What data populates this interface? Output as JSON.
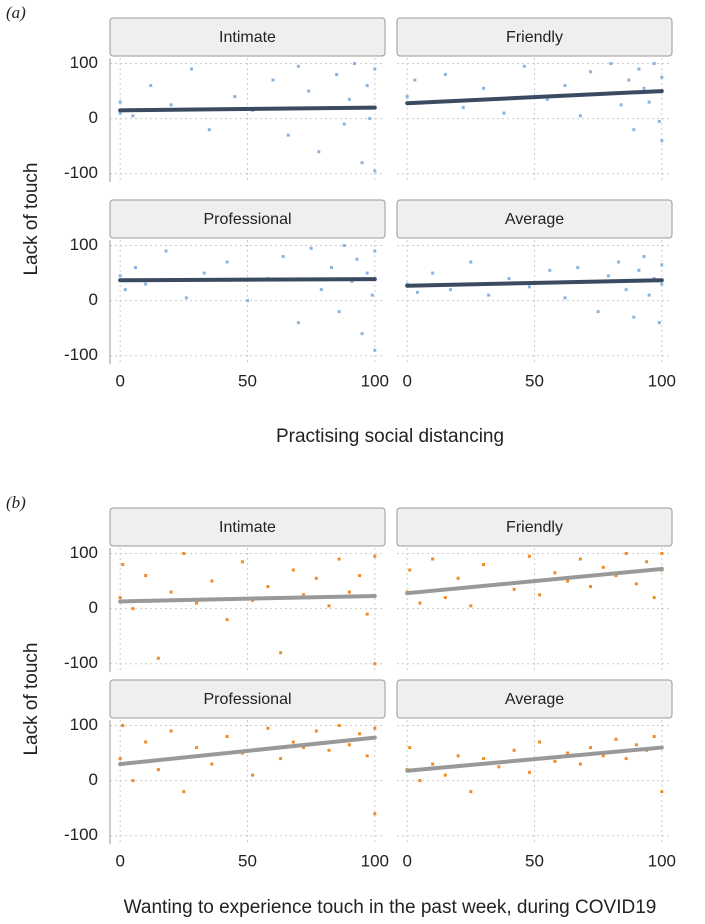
{
  "chart_data": [
    {
      "type": "scatter",
      "panel_label": "(a)",
      "ylabel": "Lack of touch",
      "xlabel": "Practising social distancing",
      "color": "#8ab4e0",
      "line_color": "#3a4a60",
      "grid": true,
      "xlim": [
        -4,
        104
      ],
      "ylim": [
        -115,
        110
      ],
      "xticks": [
        0,
        50,
        100
      ],
      "yticks": [
        -100,
        0,
        100
      ],
      "facets": [
        {
          "title": "Intimate",
          "x": [
            0,
            0,
            5,
            12,
            20,
            28,
            35,
            45,
            52,
            60,
            66,
            70,
            74,
            78,
            82,
            85,
            88,
            90,
            92,
            95,
            97,
            98,
            100,
            100
          ],
          "y": [
            30,
            10,
            5,
            60,
            25,
            90,
            -20,
            40,
            15,
            70,
            -30,
            95,
            50,
            -60,
            20,
            80,
            -10,
            35,
            100,
            -80,
            60,
            0,
            90,
            -95
          ],
          "trend": {
            "x": [
              0,
              100
            ],
            "y": [
              15,
              20
            ]
          }
        },
        {
          "title": "Friendly",
          "x": [
            0,
            3,
            8,
            15,
            22,
            30,
            38,
            46,
            55,
            62,
            68,
            72,
            76,
            80,
            84,
            87,
            89,
            91,
            93,
            95,
            97,
            99,
            100,
            100
          ],
          "y": [
            40,
            70,
            30,
            80,
            20,
            55,
            10,
            95,
            35,
            60,
            5,
            85,
            45,
            100,
            25,
            70,
            -20,
            90,
            55,
            30,
            100,
            -5,
            75,
            -40
          ],
          "trend": {
            "x": [
              0,
              100
            ],
            "y": [
              28,
              50
            ]
          }
        },
        {
          "title": "Professional",
          "x": [
            0,
            2,
            6,
            10,
            18,
            26,
            33,
            42,
            50,
            58,
            64,
            70,
            75,
            79,
            83,
            86,
            88,
            91,
            93,
            95,
            97,
            99,
            100,
            100
          ],
          "y": [
            45,
            20,
            60,
            30,
            90,
            5,
            50,
            70,
            0,
            40,
            80,
            -40,
            95,
            20,
            60,
            -20,
            100,
            35,
            75,
            -60,
            50,
            10,
            90,
            -90
          ],
          "trend": {
            "x": [
              0,
              100
            ],
            "y": [
              37,
              39
            ]
          }
        },
        {
          "title": "Average",
          "x": [
            0,
            4,
            10,
            17,
            25,
            32,
            40,
            48,
            56,
            62,
            67,
            71,
            75,
            79,
            83,
            86,
            89,
            91,
            93,
            95,
            97,
            99,
            100,
            100
          ],
          "y": [
            30,
            15,
            50,
            20,
            70,
            10,
            40,
            25,
            55,
            5,
            60,
            35,
            -20,
            45,
            70,
            20,
            -30,
            55,
            80,
            10,
            40,
            -40,
            65,
            30
          ],
          "trend": {
            "x": [
              0,
              100
            ],
            "y": [
              27,
              37
            ]
          }
        }
      ]
    },
    {
      "type": "scatter",
      "panel_label": "(b)",
      "ylabel": "Lack of touch",
      "xlabel": "Wanting to experience touch in the past week, during COVID19",
      "color": "#f08a24",
      "line_color": "#999999",
      "grid": true,
      "xlim": [
        -4,
        104
      ],
      "ylim": [
        -115,
        110
      ],
      "xticks": [
        0,
        50,
        100
      ],
      "yticks": [
        -100,
        0,
        100
      ],
      "facets": [
        {
          "title": "Intimate",
          "x": [
            0,
            1,
            5,
            10,
            15,
            20,
            25,
            30,
            36,
            42,
            48,
            52,
            58,
            63,
            68,
            72,
            77,
            82,
            86,
            90,
            94,
            97,
            100,
            100
          ],
          "y": [
            20,
            80,
            0,
            60,
            -90,
            30,
            100,
            10,
            50,
            -20,
            85,
            15,
            40,
            -80,
            70,
            25,
            55,
            5,
            90,
            30,
            60,
            -10,
            95,
            -100
          ],
          "trend": {
            "x": [
              0,
              100
            ],
            "y": [
              13,
              23
            ]
          }
        },
        {
          "title": "Friendly",
          "x": [
            0,
            1,
            5,
            10,
            15,
            20,
            25,
            30,
            36,
            42,
            48,
            52,
            58,
            63,
            68,
            72,
            77,
            82,
            86,
            90,
            94,
            97,
            100,
            100
          ],
          "y": [
            30,
            70,
            10,
            90,
            20,
            55,
            5,
            80,
            45,
            35,
            95,
            25,
            65,
            50,
            90,
            40,
            75,
            60,
            100,
            45,
            85,
            20,
            70,
            100
          ],
          "trend": {
            "x": [
              0,
              100
            ],
            "y": [
              28,
              72
            ]
          }
        },
        {
          "title": "Professional",
          "x": [
            0,
            1,
            5,
            10,
            15,
            20,
            25,
            30,
            36,
            42,
            48,
            52,
            58,
            63,
            68,
            72,
            77,
            82,
            86,
            90,
            94,
            97,
            100,
            100
          ],
          "y": [
            40,
            100,
            0,
            70,
            20,
            90,
            -20,
            60,
            30,
            80,
            50,
            10,
            95,
            40,
            70,
            60,
            90,
            55,
            100,
            65,
            85,
            45,
            95,
            -60
          ],
          "trend": {
            "x": [
              0,
              100
            ],
            "y": [
              30,
              78
            ]
          }
        },
        {
          "title": "Average",
          "x": [
            0,
            1,
            5,
            10,
            15,
            20,
            25,
            30,
            36,
            42,
            48,
            52,
            58,
            63,
            68,
            72,
            77,
            82,
            86,
            90,
            94,
            97,
            100,
            100
          ],
          "y": [
            20,
            60,
            0,
            30,
            10,
            45,
            -20,
            40,
            25,
            55,
            15,
            70,
            35,
            50,
            30,
            60,
            45,
            75,
            40,
            65,
            55,
            80,
            60,
            -20
          ],
          "trend": {
            "x": [
              0,
              100
            ],
            "y": [
              18,
              60
            ]
          }
        }
      ]
    }
  ]
}
